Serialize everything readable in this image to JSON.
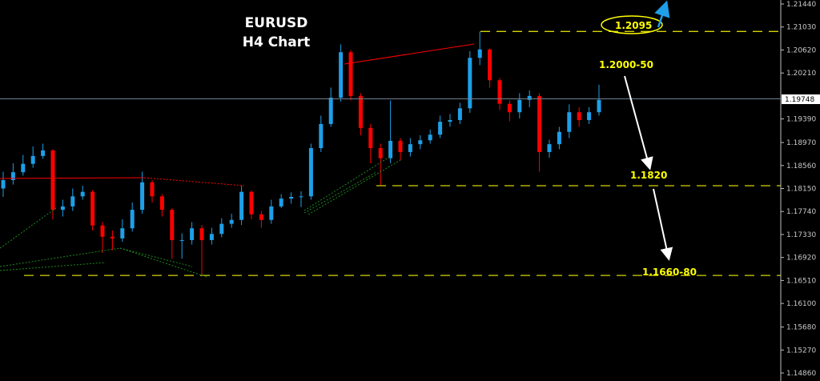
{
  "chart_data": {
    "type": "candlestick",
    "title": "EURUSD",
    "subtitle": "H4 Chart",
    "ylim": [
      1.1486,
      1.2144
    ],
    "y_ticks": [
      "1.21440",
      "1.21030",
      "1.20620",
      "1.20210",
      "1.19390",
      "1.18970",
      "1.18560",
      "1.18150",
      "1.17740",
      "1.17330",
      "1.16920",
      "1.16510",
      "1.16100",
      "1.15680",
      "1.15270",
      "1.14860"
    ],
    "current_price": "1.19748",
    "first_open": 1.1815,
    "close": [
      1.183,
      1.1844,
      1.1859,
      1.1873,
      1.1883,
      1.1777,
      1.1783,
      1.1801,
      1.1809,
      1.1749,
      1.1729,
      1.1726,
      1.1744,
      1.1777,
      1.1826,
      1.1801,
      1.1777,
      1.1723,
      1.1723,
      1.1744,
      1.1723,
      1.1734,
      1.1752,
      1.1759,
      1.1809,
      1.1769,
      1.1759,
      1.1783,
      1.1797,
      1.18,
      1.1801,
      1.1887,
      1.193,
      1.1977,
      1.2058,
      1.198,
      1.1923,
      1.1887,
      1.1869,
      1.19,
      1.188,
      1.1894,
      1.1901,
      1.1911,
      1.1934,
      1.1937,
      1.1958,
      1.2048,
      1.2063,
      1.2008,
      1.1966,
      1.1951,
      1.1973,
      1.198,
      1.188,
      1.1894,
      1.1916,
      1.1951,
      1.1937,
      1.1951,
      1.1973
    ],
    "high": [
      1.1845,
      1.186,
      1.1875,
      1.189,
      1.1895,
      1.1885,
      1.1795,
      1.1815,
      1.182,
      1.1812,
      1.1755,
      1.174,
      1.176,
      1.179,
      1.1845,
      1.183,
      1.1805,
      1.178,
      1.1735,
      1.1755,
      1.175,
      1.1745,
      1.1762,
      1.177,
      1.182,
      1.1812,
      1.1775,
      1.1795,
      1.1805,
      1.1808,
      1.181,
      1.1895,
      1.1945,
      1.1995,
      1.2072,
      1.2062,
      1.1985,
      1.193,
      1.1895,
      1.1972,
      1.1905,
      1.1905,
      1.191,
      1.192,
      1.1945,
      1.1948,
      1.1968,
      1.206,
      1.2095,
      1.2065,
      1.2012,
      1.1972,
      1.1985,
      1.199,
      1.1985,
      1.1902,
      1.1925,
      1.1965,
      1.196,
      1.196,
      1.2
    ],
    "low": [
      1.18,
      1.1822,
      1.1838,
      1.1852,
      1.1868,
      1.176,
      1.1765,
      1.1775,
      1.1795,
      1.174,
      1.17,
      1.1705,
      1.172,
      1.1738,
      1.177,
      1.179,
      1.1765,
      1.169,
      1.169,
      1.1715,
      1.166,
      1.1715,
      1.1728,
      1.1745,
      1.175,
      1.176,
      1.1745,
      1.1752,
      1.178,
      1.1788,
      1.1782,
      1.1795,
      1.188,
      1.1925,
      1.197,
      1.1972,
      1.191,
      1.186,
      1.182,
      1.186,
      1.1865,
      1.1872,
      1.1885,
      1.1895,
      1.1905,
      1.1925,
      1.193,
      1.195,
      1.2035,
      1.1995,
      1.1955,
      1.1935,
      1.194,
      1.196,
      1.1845,
      1.187,
      1.1885,
      1.1905,
      1.1925,
      1.193,
      1.1945
    ],
    "levels": [
      {
        "label": "1.2095",
        "price": 1.2095
      },
      {
        "label": "1.2000-50",
        "price": null
      },
      {
        "label": "1.1820",
        "price": 1.182
      },
      {
        "label": "1.1660-80",
        "price": 1.166
      }
    ],
    "grid": false,
    "colors": {
      "bull": "#1e9fe8",
      "bear": "#ff0000",
      "level": "#d4d400",
      "annotation": "#ffff00",
      "price_line": "#708090"
    }
  }
}
